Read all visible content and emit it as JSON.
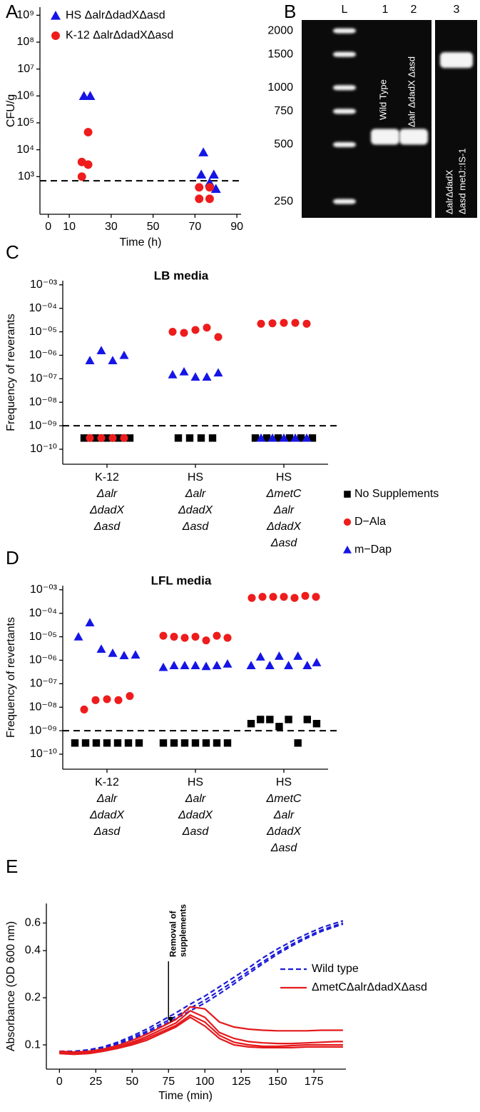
{
  "chart_data": [
    {
      "type": "scatter",
      "label": "A",
      "ylabel": "CFU/g",
      "xlabel": "Time (h)",
      "log_y": true,
      "xlim": [
        -4,
        92
      ],
      "ylim": [
        40,
        2000000000
      ],
      "xticks": [
        0,
        10,
        30,
        50,
        70,
        90
      ],
      "yticks": [
        {
          "value": 1000,
          "label": "10³"
        },
        {
          "value": 10000,
          "label": "10⁴"
        },
        {
          "value": 100000,
          "label": "10⁵"
        },
        {
          "value": 1000000,
          "label": "10⁶"
        },
        {
          "value": 10000000,
          "label": "10⁷"
        },
        {
          "value": 100000000,
          "label": "10⁸"
        },
        {
          "value": 1000000000,
          "label": "10⁹"
        }
      ],
      "hline": 700,
      "legend": "upper left",
      "series": [
        {
          "name": "HS ΔalrΔdadXΔasd",
          "color": "#1515e6",
          "marker": "triangle",
          "x": [
            17,
            20,
            74,
            73,
            79,
            77,
            80
          ],
          "values": [
            1000000,
            1000000,
            8000,
            1200,
            1200,
            600,
            350
          ]
        },
        {
          "name": "K-12 ΔalrΔdadXΔasd",
          "color": "#ee1c1c",
          "marker": "circle",
          "x": [
            19,
            16,
            19,
            16,
            72,
            77,
            72,
            77
          ],
          "values": [
            45000,
            3500,
            2800,
            1000,
            400,
            400,
            150,
            150
          ]
        }
      ]
    },
    {
      "type": "gel",
      "label": "B",
      "log_y": true,
      "ylim": [
        205,
        2280
      ],
      "yticks": [
        2000,
        1500,
        1000,
        750,
        500,
        250
      ],
      "series": [
        {
          "lane": "L",
          "values": [
            2000,
            1500,
            1000,
            750,
            500,
            250
          ]
        },
        {
          "lane": "1",
          "name": [
            "Wild Type"
          ],
          "values": [
            550
          ]
        },
        {
          "lane": "2",
          "name": [
            "Δalr ΔdadX Δasd"
          ],
          "values": [
            550
          ]
        },
        {
          "lane": "3",
          "name": [
            "ΔalrΔdadX",
            "Δasd metJ::IS-1"
          ],
          "values": [
            1400
          ]
        }
      ]
    },
    {
      "type": "strip",
      "label": "C",
      "title": "LB media",
      "ylabel": "Frequency of reverants",
      "log_y": true,
      "ylim": [
        2.3e-11,
        0.0015
      ],
      "yticks": [
        {
          "value": 0.001,
          "label": "10⁻⁰³"
        },
        {
          "value": 0.0001,
          "label": "10⁻⁰⁴"
        },
        {
          "value": 1e-05,
          "label": "10⁻⁰⁵"
        },
        {
          "value": 1e-06,
          "label": "10⁻⁰⁶"
        },
        {
          "value": 1e-07,
          "label": "10⁻⁰⁷"
        },
        {
          "value": 1e-08,
          "label": "10⁻⁰⁸"
        },
        {
          "value": 1e-09,
          "label": "10⁻⁰⁹"
        },
        {
          "value": 1e-10,
          "label": "10⁻¹⁰"
        }
      ],
      "hline": 1e-09,
      "legend": "right",
      "categories": [
        [
          "K-12",
          "Δalr",
          "ΔdadX",
          "Δasd"
        ],
        [
          "HS",
          "Δalr",
          "ΔdadX",
          "Δasd"
        ],
        [
          "HS",
          "ΔmetC",
          "Δalr",
          "ΔdadX",
          "Δasd"
        ]
      ],
      "series": [
        {
          "name": "No Supplements",
          "color": "#000000",
          "marker": "square",
          "values": [
            [
              3e-10,
              3e-10,
              3e-10,
              3e-10,
              3e-10
            ],
            [
              3e-10,
              3e-10,
              3e-10,
              3e-10
            ],
            [
              3e-10,
              3e-10,
              3e-10,
              3e-10,
              3e-10,
              3e-10
            ]
          ]
        },
        {
          "name": "D−Ala",
          "color": "#ee1c1c",
          "marker": "circle",
          "values": [
            [
              3e-10,
              3e-10,
              3e-10,
              3e-10
            ],
            [
              1e-05,
              9e-06,
              1.2e-05,
              1.5e-05,
              6e-06
            ],
            [
              2.2e-05,
              2.3e-05,
              2.4e-05,
              2.4e-05,
              2.2e-05
            ]
          ]
        },
        {
          "name": "m−Dap",
          "color": "#1515e6",
          "marker": "triangle",
          "values": [
            [
              6e-07,
              1.6e-06,
              6e-07,
              1e-06
            ],
            [
              1.5e-07,
              2e-07,
              1.2e-07,
              1.2e-07,
              1.8e-07
            ],
            [
              3e-10,
              3e-10,
              3e-10,
              3e-10,
              3e-10
            ]
          ]
        }
      ]
    },
    {
      "type": "strip",
      "label": "D",
      "title": "LFL media",
      "ylabel": "Frequency of revertants",
      "log_y": true,
      "ylim": [
        2.3e-11,
        0.0015
      ],
      "yticks": [
        {
          "value": 0.001,
          "label": "10⁻⁰³"
        },
        {
          "value": 0.0001,
          "label": "10⁻⁰⁴"
        },
        {
          "value": 1e-05,
          "label": "10⁻⁰⁵"
        },
        {
          "value": 1e-06,
          "label": "10⁻⁰⁶"
        },
        {
          "value": 1e-07,
          "label": "10⁻⁰⁷"
        },
        {
          "value": 1e-08,
          "label": "10⁻⁰⁸"
        },
        {
          "value": 1e-09,
          "label": "10⁻⁰⁹"
        },
        {
          "value": 1e-10,
          "label": "10⁻¹⁰"
        }
      ],
      "hline": 1e-09,
      "categories": [
        [
          "K-12",
          "Δalr",
          "ΔdadX",
          "Δasd"
        ],
        [
          "HS",
          "Δalr",
          "ΔdadX",
          "Δasd"
        ],
        [
          "HS",
          "ΔmetC",
          "Δalr",
          "ΔdadX",
          "Δasd"
        ]
      ],
      "series": [
        {
          "color": "#000000",
          "marker": "square",
          "values": [
            [
              3e-10,
              3e-10,
              3e-10,
              3e-10,
              3e-10,
              3e-10,
              3e-10
            ],
            [
              3e-10,
              3e-10,
              3e-10,
              3e-10,
              3e-10,
              3e-10,
              3e-10
            ],
            [
              2e-09,
              3e-09,
              3e-09,
              1.5e-09,
              3e-09,
              3e-10,
              3e-09,
              2e-09
            ]
          ]
        },
        {
          "color": "#ee1c1c",
          "marker": "circle",
          "values": [
            [
              8e-09,
              2e-08,
              2.2e-08,
              2e-08,
              3e-08
            ],
            [
              1.1e-05,
              1e-05,
              9e-06,
              1e-05,
              7e-06,
              1.1e-05,
              9e-06
            ],
            [
              0.00045,
              0.0005,
              0.0005,
              0.0005,
              0.00045,
              0.00055,
              0.0005
            ]
          ]
        },
        {
          "color": "#1515e6",
          "marker": "triangle",
          "values": [
            [
              1e-05,
              4e-05,
              3e-06,
              2e-06,
              1.6e-06,
              1.7e-06
            ],
            [
              5e-07,
              6e-07,
              6e-07,
              6e-07,
              5.5e-07,
              6e-07,
              7e-07
            ],
            [
              6e-07,
              1.4e-06,
              6e-07,
              1.5e-06,
              6e-07,
              1.5e-06,
              6e-07,
              8e-07
            ]
          ]
        }
      ]
    },
    {
      "type": "line",
      "label": "E",
      "ylabel": "Absorbance (OD 600 nm)",
      "xlabel": "Time (min)",
      "log_y": true,
      "xlim": [
        -9,
        197
      ],
      "ylim": [
        0.07,
        0.8
      ],
      "xticks": [
        0,
        25,
        50,
        75,
        100,
        125,
        150,
        175
      ],
      "yticks": [
        0.1,
        0.2,
        0.4,
        0.6
      ],
      "annotation": {
        "text": [
          "Removal of",
          "supplements"
        ],
        "x": 75
      },
      "x": [
        0,
        10,
        20,
        30,
        40,
        50,
        60,
        70,
        80,
        90,
        100,
        110,
        120,
        130,
        140,
        150,
        160,
        170,
        180,
        190,
        195
      ],
      "series": [
        {
          "name": "Wild type",
          "color": "#1c1cd6",
          "style": "dashed",
          "runs": [
            [
              0.091,
              0.091,
              0.093,
              0.097,
              0.104,
              0.114,
              0.126,
              0.142,
              0.16,
              0.182,
              0.205,
              0.235,
              0.27,
              0.31,
              0.36,
              0.41,
              0.46,
              0.51,
              0.56,
              0.6,
              0.62
            ],
            [
              0.09,
              0.09,
              0.092,
              0.096,
              0.102,
              0.111,
              0.122,
              0.136,
              0.152,
              0.172,
              0.193,
              0.222,
              0.255,
              0.295,
              0.34,
              0.39,
              0.44,
              0.49,
              0.54,
              0.58,
              0.6
            ],
            [
              0.089,
              0.089,
              0.091,
              0.095,
              0.101,
              0.109,
              0.119,
              0.132,
              0.147,
              0.165,
              0.185,
              0.212,
              0.245,
              0.285,
              0.33,
              0.38,
              0.43,
              0.48,
              0.53,
              0.57,
              0.59
            ]
          ]
        },
        {
          "name": "ΔmetCΔalrΔdadXΔasd",
          "color": "#e41a1c",
          "style": "solid",
          "runs": [
            [
              0.091,
              0.09,
              0.091,
              0.094,
              0.099,
              0.107,
              0.117,
              0.13,
              0.145,
              0.175,
              0.17,
              0.14,
              0.13,
              0.126,
              0.124,
              0.123,
              0.123,
              0.123,
              0.124,
              0.124,
              0.124
            ],
            [
              0.09,
              0.089,
              0.09,
              0.093,
              0.097,
              0.104,
              0.113,
              0.125,
              0.138,
              0.165,
              0.15,
              0.12,
              0.11,
              0.105,
              0.103,
              0.102,
              0.102,
              0.103,
              0.104,
              0.105,
              0.105
            ],
            [
              0.089,
              0.088,
              0.089,
              0.092,
              0.096,
              0.102,
              0.11,
              0.121,
              0.133,
              0.155,
              0.14,
              0.115,
              0.104,
              0.1,
              0.098,
              0.098,
              0.099,
              0.1,
              0.1,
              0.1,
              0.1
            ],
            [
              0.088,
              0.087,
              0.088,
              0.091,
              0.095,
              0.1,
              0.107,
              0.118,
              0.13,
              0.15,
              0.132,
              0.11,
              0.1,
              0.097,
              0.096,
              0.096,
              0.096,
              0.097,
              0.097,
              0.097,
              0.097
            ]
          ]
        }
      ]
    }
  ]
}
